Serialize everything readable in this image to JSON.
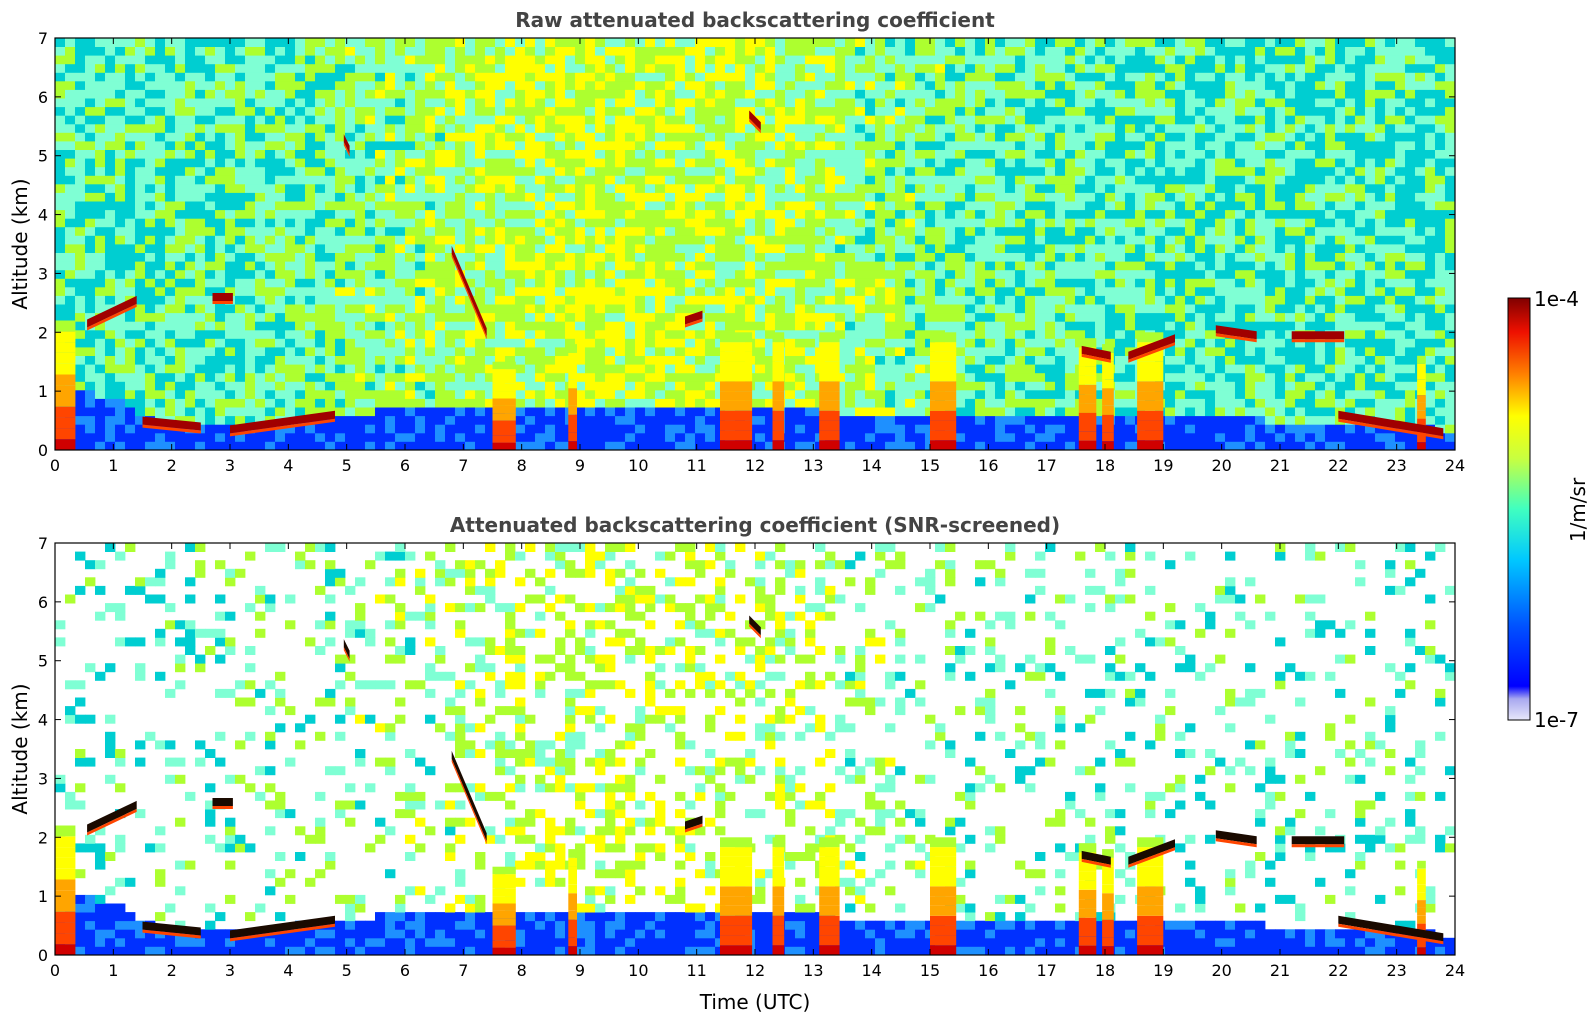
{
  "chart_data": [
    {
      "type": "heatmap",
      "title": "Raw attenuated backscattering coefficient",
      "xlabel": "",
      "ylabel": "Altitude (km)",
      "xlim": [
        0,
        24
      ],
      "ylim": [
        0,
        7
      ],
      "xticks": [
        "0",
        "1",
        "2",
        "3",
        "4",
        "5",
        "6",
        "7",
        "8",
        "9",
        "10",
        "11",
        "12",
        "13",
        "14",
        "15",
        "16",
        "17",
        "18",
        "19",
        "20",
        "21",
        "22",
        "23",
        "24"
      ],
      "yticks": [
        "0",
        "1",
        "2",
        "3",
        "4",
        "5",
        "6",
        "7"
      ],
      "screened": false,
      "boundary_layer_km": [
        [
          0,
          1.1
        ],
        [
          1,
          0.9
        ],
        [
          1.5,
          0.55
        ],
        [
          2,
          0.45
        ],
        [
          3,
          0.4
        ],
        [
          4,
          0.5
        ],
        [
          5,
          0.6
        ],
        [
          6,
          0.7
        ],
        [
          7,
          0.8
        ],
        [
          8,
          0.8
        ],
        [
          9,
          0.8
        ],
        [
          10,
          0.8
        ],
        [
          11,
          0.8
        ],
        [
          12,
          0.75
        ],
        [
          13,
          0.7
        ],
        [
          14,
          0.6
        ],
        [
          15,
          0.55
        ],
        [
          16,
          0.55
        ],
        [
          17,
          0.6
        ],
        [
          18,
          0.6
        ],
        [
          19,
          0.6
        ],
        [
          20,
          0.55
        ],
        [
          21,
          0.5
        ],
        [
          22,
          0.45
        ],
        [
          23,
          0.4
        ],
        [
          24,
          0.35
        ]
      ],
      "cloud_layers": [
        {
          "t0": 0.55,
          "t1": 1.4,
          "h0": 2.15,
          "h1": 2.55
        },
        {
          "t0": 1.5,
          "t1": 2.5,
          "h0": 0.5,
          "h1": 0.4
        },
        {
          "t0": 2.7,
          "t1": 3.05,
          "h0": 2.6,
          "h1": 2.6
        },
        {
          "t0": 3.0,
          "t1": 4.8,
          "h0": 0.35,
          "h1": 0.6
        },
        {
          "t0": 6.8,
          "t1": 7.4,
          "h0": 3.4,
          "h1": 2.0
        },
        {
          "t0": 10.8,
          "t1": 11.1,
          "h0": 2.2,
          "h1": 2.3
        },
        {
          "t0": 19.9,
          "t1": 20.6,
          "h0": 2.05,
          "h1": 1.95
        },
        {
          "t0": 21.2,
          "t1": 22.1,
          "h0": 1.95,
          "h1": 1.95
        },
        {
          "t0": 17.6,
          "t1": 18.1,
          "h0": 1.7,
          "h1": 1.6
        },
        {
          "t0": 18.4,
          "t1": 19.2,
          "h0": 1.6,
          "h1": 1.9
        },
        {
          "t0": 22.0,
          "t1": 23.8,
          "h0": 0.6,
          "h1": 0.3
        },
        {
          "t0": 11.9,
          "t1": 12.1,
          "h0": 5.7,
          "h1": 5.5
        },
        {
          "t0": 4.95,
          "t1": 5.05,
          "h0": 5.3,
          "h1": 5.1
        }
      ],
      "precip_columns": [
        {
          "t0": 0.0,
          "t1": 0.35,
          "top": 2.2
        },
        {
          "t0": 11.4,
          "t1": 11.95,
          "top": 2.0
        },
        {
          "t0": 12.3,
          "t1": 12.5,
          "top": 2.0
        },
        {
          "t0": 13.1,
          "t1": 13.45,
          "top": 2.0
        },
        {
          "t0": 15.0,
          "t1": 15.45,
          "top": 2.0
        },
        {
          "t0": 17.55,
          "t1": 17.85,
          "top": 1.9
        },
        {
          "t0": 17.95,
          "t1": 18.15,
          "top": 1.8
        },
        {
          "t0": 18.55,
          "t1": 19.0,
          "top": 2.0
        },
        {
          "t0": 8.8,
          "t1": 8.95,
          "top": 1.8
        },
        {
          "t0": 7.5,
          "t1": 7.9,
          "top": 1.5
        },
        {
          "t0": 23.35,
          "t1": 23.5,
          "top": 1.6
        }
      ]
    },
    {
      "type": "heatmap",
      "title": "Attenuated backscattering coefficient (SNR-screened)",
      "xlabel": "Time (UTC)",
      "ylabel": "Altitude (km)",
      "xlim": [
        0,
        24
      ],
      "ylim": [
        0,
        7
      ],
      "xticks": [
        "0",
        "1",
        "2",
        "3",
        "4",
        "5",
        "6",
        "7",
        "8",
        "9",
        "10",
        "11",
        "12",
        "13",
        "14",
        "15",
        "16",
        "17",
        "18",
        "19",
        "20",
        "21",
        "22",
        "23",
        "24"
      ],
      "yticks": [
        "0",
        "1",
        "2",
        "3",
        "4",
        "5",
        "6",
        "7"
      ],
      "screened": true
    }
  ],
  "colorbar": {
    "label": "1/m/sr",
    "max_label": "1e-4",
    "min_label": "1e-7",
    "scale": "log",
    "colormap": [
      "#0000c0",
      "#0030ff",
      "#1e90ff",
      "#00ced1",
      "#7fffd4",
      "#adff2f",
      "#ffff00",
      "#ffa500",
      "#ff4500",
      "#d00000",
      "#800000"
    ],
    "under_color": "#e8e8fa"
  }
}
